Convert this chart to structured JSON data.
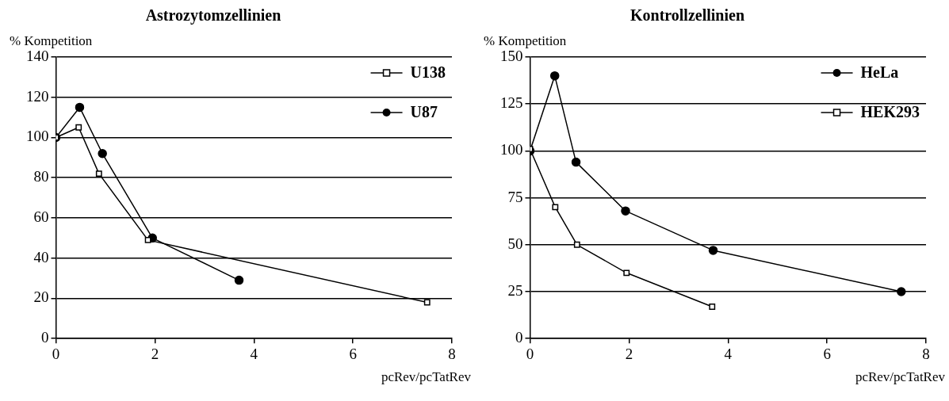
{
  "chart_data": [
    {
      "type": "line",
      "title": "Astrozytomzellinien",
      "xlabel": "pcRev/pcTatRev",
      "ylabel": "% Kompetition",
      "xlim": [
        0,
        8
      ],
      "xticks": [
        0,
        2,
        4,
        6,
        8
      ],
      "ylim": [
        0,
        140
      ],
      "yticks": [
        0,
        20,
        40,
        60,
        80,
        100,
        120,
        140
      ],
      "grid": "y",
      "legend": "top right",
      "line_style": "solid",
      "series": [
        {
          "name": "U138",
          "color": "#000000",
          "marker": "square",
          "x": [
            0,
            0.46,
            0.87,
            1.86,
            7.5
          ],
          "values": [
            100,
            105,
            82,
            49,
            18
          ]
        },
        {
          "name": "U87",
          "color": "#000000",
          "marker": "circle",
          "x": [
            0,
            0.48,
            0.94,
            1.95,
            3.7
          ],
          "values": [
            100,
            115,
            92,
            50,
            29
          ]
        }
      ]
    },
    {
      "type": "line",
      "title": "Kontrollzellinien",
      "xlabel": "pcRev/pcTatRev",
      "ylabel": "% Kompetition",
      "xlim": [
        0,
        8
      ],
      "xticks": [
        0,
        2,
        4,
        6,
        8
      ],
      "ylim": [
        0,
        150
      ],
      "yticks": [
        0,
        25,
        50,
        75,
        100,
        125,
        150
      ],
      "grid": "y",
      "legend": "top right",
      "line_style": "solid",
      "series": [
        {
          "name": "HeLa",
          "color": "#000000",
          "marker": "circle",
          "x": [
            0,
            0.5,
            0.93,
            1.93,
            3.7,
            7.5
          ],
          "values": [
            100,
            140,
            94,
            68,
            47,
            25
          ]
        },
        {
          "name": "HEK293",
          "color": "#000000",
          "marker": "square",
          "x": [
            0,
            0.51,
            0.95,
            1.95,
            3.68
          ],
          "values": [
            101,
            70,
            50,
            35,
            17
          ]
        }
      ]
    }
  ]
}
